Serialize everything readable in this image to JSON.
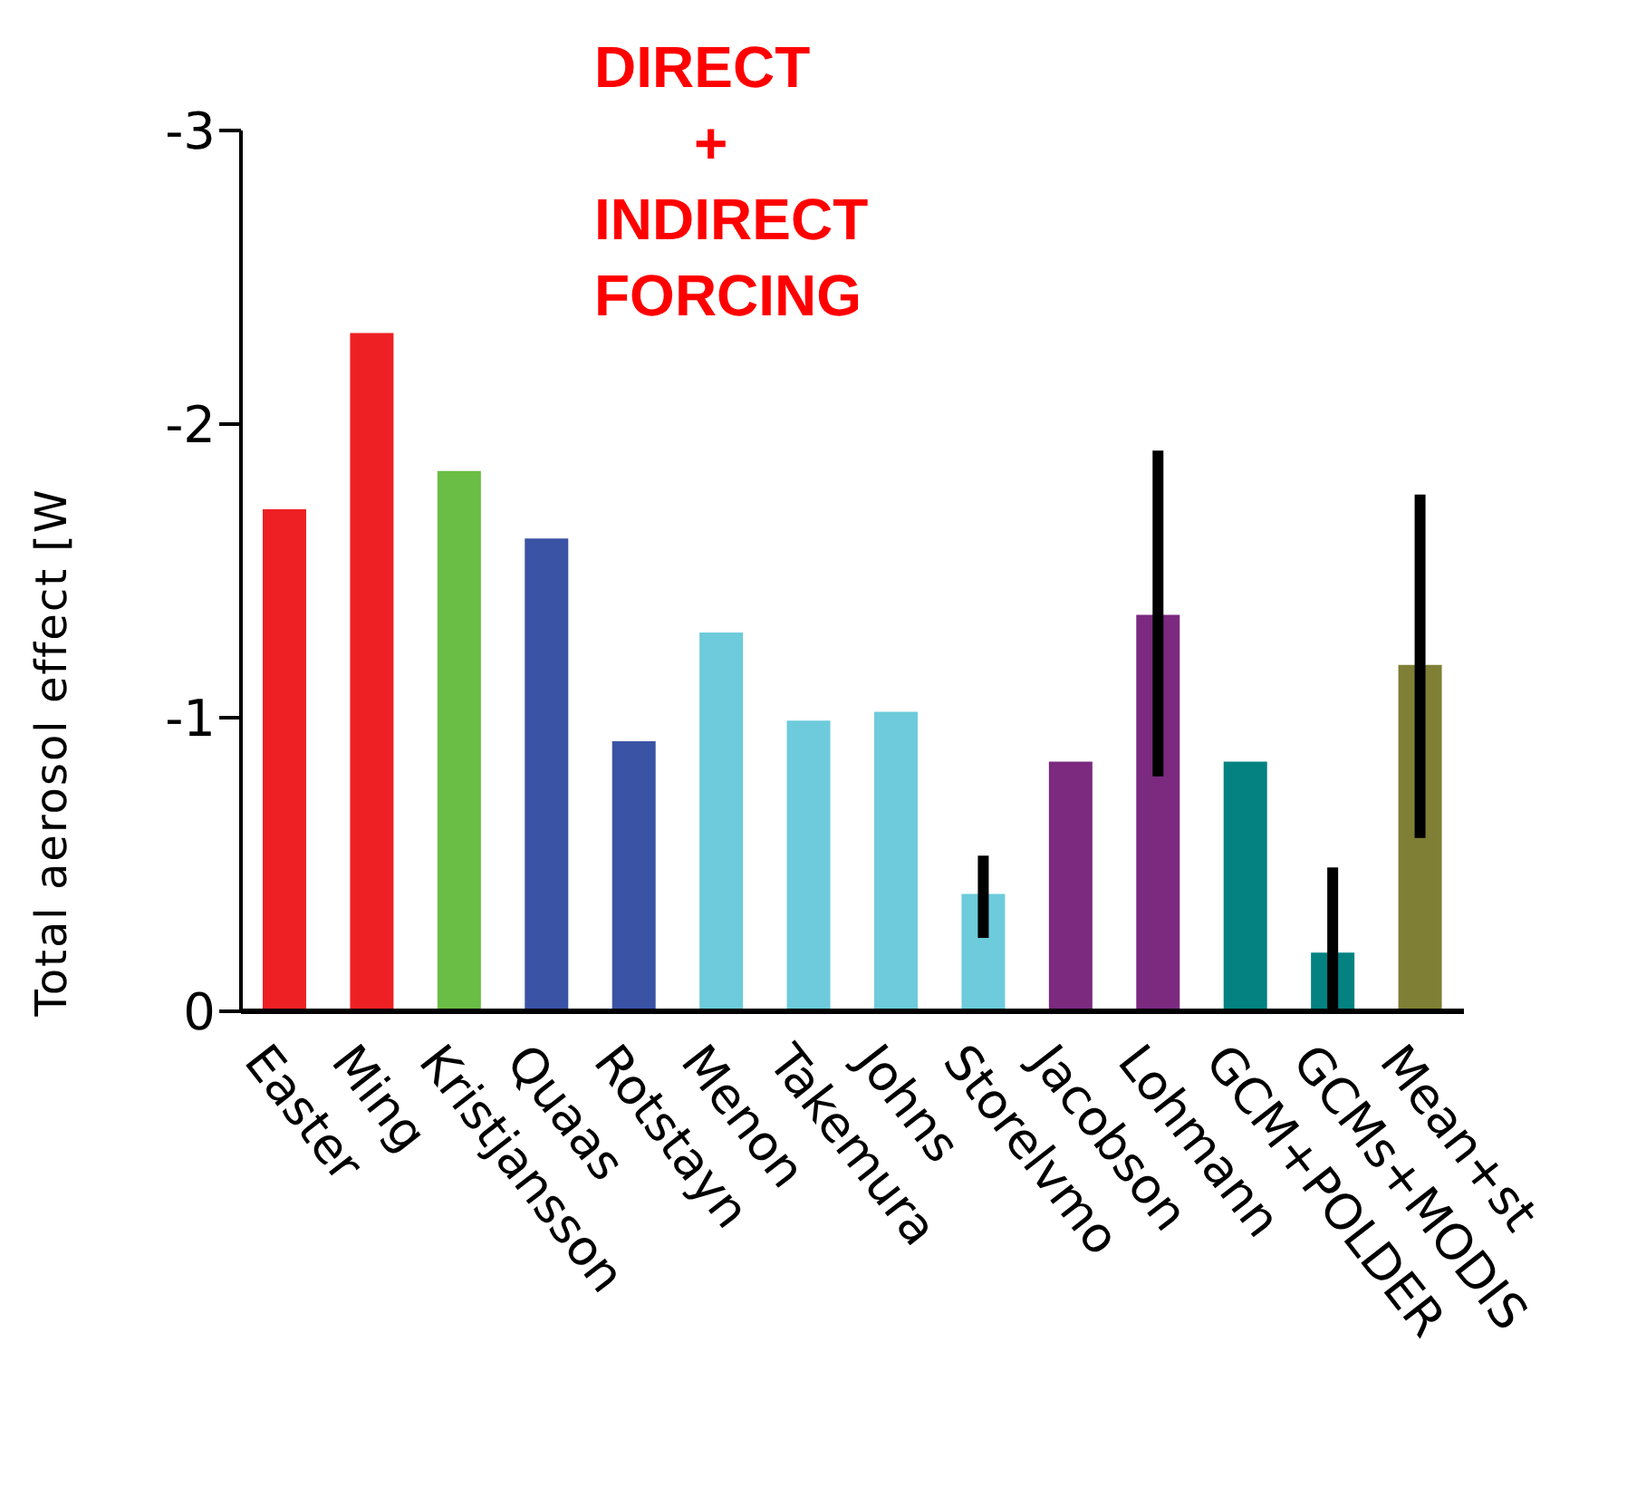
{
  "chart_data": {
    "type": "bar",
    "title": "DIRECT + INDIRECT FORCING",
    "ylabel": "Total aerosol effect [W",
    "categories": [
      "Easter",
      "Ming",
      "Kristjansson",
      "Quaas",
      "Rotstayn",
      "Menon",
      "Takemura",
      "Johns",
      "Storelvmo",
      "Jacobson",
      "Lohmann",
      "GCM+POLDER",
      "GCMs+MODIS",
      "Mean+st"
    ],
    "values": [
      -1.71,
      -2.31,
      -1.84,
      -1.61,
      -0.92,
      -1.29,
      -0.99,
      -1.02,
      -0.4,
      -0.85,
      -1.35,
      -0.85,
      -0.2,
      -1.18
    ],
    "colors": [
      "#ee2024",
      "#ee2024",
      "#6abd45",
      "#3a53a4",
      "#3a53a4",
      "#6dcbdb",
      "#6dcbdb",
      "#6dcbdb",
      "#6dcbdb",
      "#7b2a80",
      "#7b2a80",
      "#038281",
      "#038281",
      "#7f7f35"
    ],
    "errors": [
      null,
      null,
      null,
      null,
      null,
      null,
      null,
      null,
      [
        -0.53,
        -0.25
      ],
      null,
      [
        -1.91,
        -0.8
      ],
      null,
      [
        -0.49,
        0
      ],
      [
        -1.76,
        -0.59
      ]
    ],
    "ylim": [
      0,
      -3
    ],
    "yticks": [
      0,
      -1,
      -2,
      -3
    ],
    "grid": false,
    "legend": false
  }
}
